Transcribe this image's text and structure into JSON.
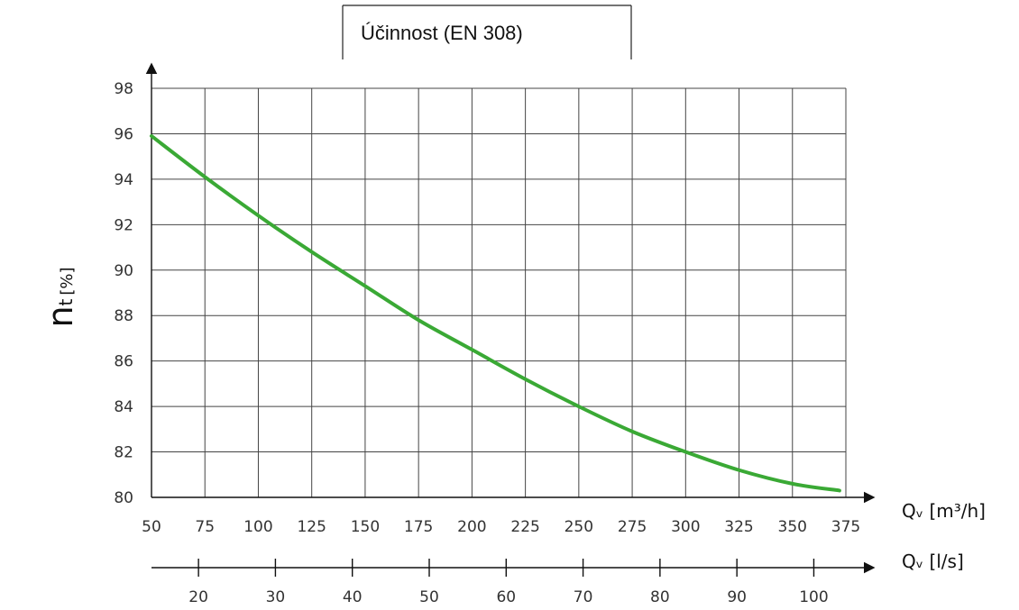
{
  "chart_data": {
    "type": "line",
    "title": "Účinnost (EN 308)",
    "ylabel_main": "n",
    "ylabel_sub": "t",
    "ylabel_unit": "[%]",
    "xlabel_top": "Qᵥ [m³/h]",
    "xlabel_bottom": "Qᵥ [l/s]",
    "xlim": [
      50,
      375
    ],
    "ylim": [
      80,
      98
    ],
    "x_ticks": [
      50,
      75,
      100,
      125,
      150,
      175,
      200,
      225,
      250,
      275,
      300,
      325,
      350,
      375
    ],
    "y_ticks": [
      80,
      82,
      84,
      86,
      88,
      90,
      92,
      94,
      96,
      98
    ],
    "secondary_x_ticks": [
      20,
      30,
      40,
      50,
      60,
      70,
      80,
      90,
      100
    ],
    "grid": true,
    "series": [
      {
        "color": "#3aa935",
        "x": [
          50,
          75,
          100,
          125,
          150,
          175,
          200,
          225,
          250,
          275,
          300,
          325,
          350,
          372
        ],
        "y": [
          95.9,
          94.1,
          92.4,
          90.8,
          89.3,
          87.8,
          86.5,
          85.2,
          84.0,
          82.9,
          82.0,
          81.2,
          80.6,
          80.3
        ]
      }
    ]
  }
}
